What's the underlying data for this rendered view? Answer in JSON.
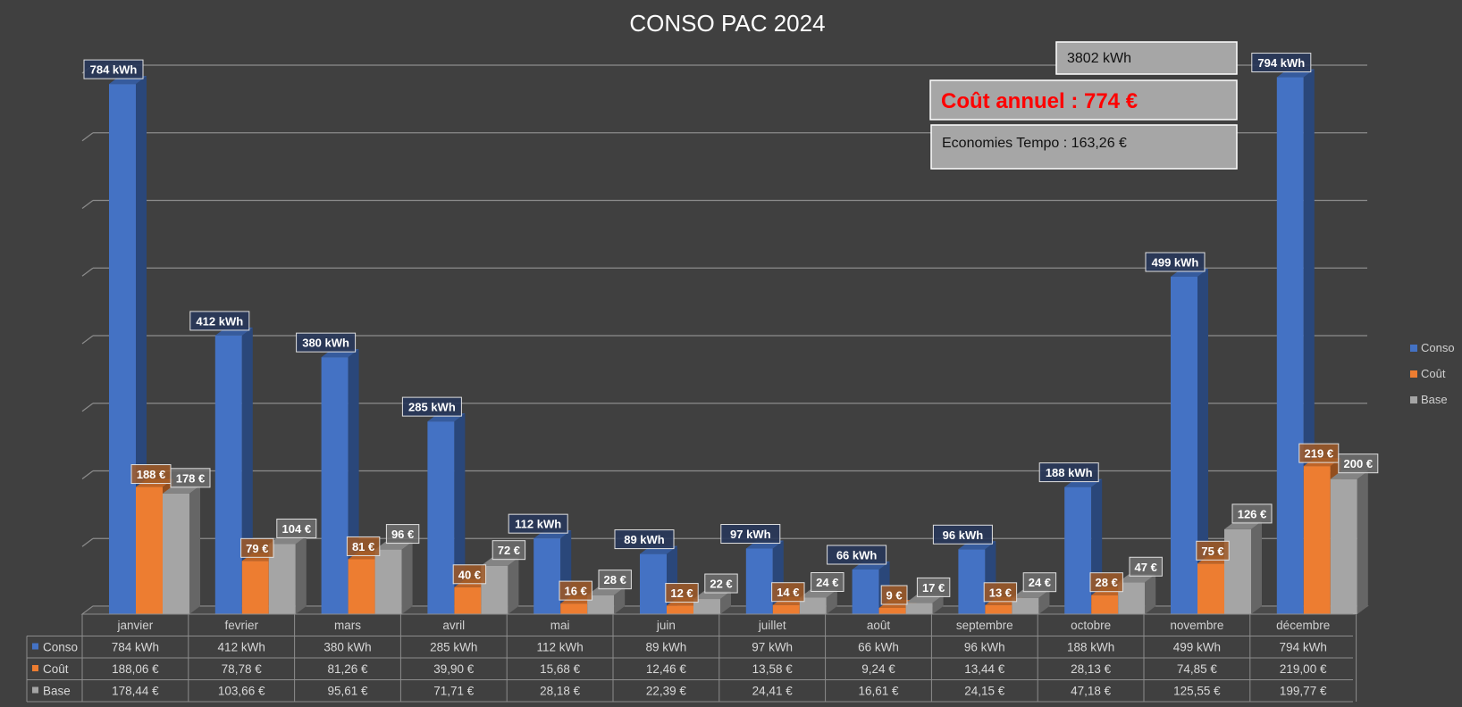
{
  "chart_data": {
    "type": "bar",
    "title": "CONSO PAC 2024",
    "categories": [
      "janvier",
      "fevrier",
      "mars",
      "avril",
      "mai",
      "juin",
      "juillet",
      "août",
      "septembre",
      "octobre",
      "novembre",
      "décembre"
    ],
    "series": [
      {
        "name": "Conso",
        "color": "#4472c4",
        "values": [
          784,
          412,
          380,
          285,
          112,
          89,
          97,
          66,
          96,
          188,
          499,
          794
        ],
        "labels": [
          "784 kWh",
          "412 kWh",
          "380 kWh",
          "285 kWh",
          "112 kWh",
          "89 kWh",
          "97 kWh",
          "66 kWh",
          "96 kWh",
          "188 kWh",
          "499 kWh",
          "794 kWh"
        ],
        "table": [
          "784 kWh",
          "412 kWh",
          "380 kWh",
          "285 kWh",
          "112 kWh",
          "89 kWh",
          "97 kWh",
          "66 kWh",
          "96 kWh",
          "188 kWh",
          "499 kWh",
          "794 kWh"
        ]
      },
      {
        "name": "Coût",
        "color": "#ed7d31",
        "values": [
          188.06,
          78.78,
          81.26,
          39.9,
          15.68,
          12.46,
          13.58,
          9.24,
          13.44,
          28.13,
          74.85,
          219.0
        ],
        "labels": [
          "188 €",
          "79 €",
          "81 €",
          "40 €",
          "16 €",
          "12 €",
          "14 €",
          "9 €",
          "13 €",
          "28 €",
          "75 €",
          "219 €"
        ],
        "table": [
          "188,06 €",
          "78,78 €",
          "81,26 €",
          "39,90 €",
          "15,68 €",
          "12,46 €",
          "13,58 €",
          "9,24 €",
          "13,44 €",
          "28,13 €",
          "74,85 €",
          "219,00 €"
        ]
      },
      {
        "name": "Base",
        "color": "#a5a5a5",
        "values": [
          178.44,
          103.66,
          95.61,
          71.71,
          28.18,
          22.39,
          24.41,
          16.61,
          24.15,
          47.18,
          125.55,
          199.77
        ],
        "labels": [
          "178 €",
          "104 €",
          "96 €",
          "72 €",
          "28 €",
          "22 €",
          "24 €",
          "17 €",
          "24 €",
          "47 €",
          "126 €",
          "200 €"
        ],
        "table": [
          "178,44 €",
          "103,66 €",
          "95,61 €",
          "71,71 €",
          "28,18 €",
          "22,39 €",
          "24,41 €",
          "16,61 €",
          "24,15 €",
          "47,18 €",
          "125,55 €",
          "199,77 €"
        ]
      }
    ],
    "ylim": [
      0,
      800
    ],
    "grid": true,
    "legend": "right",
    "data_table": true
  },
  "info_boxes": {
    "total": "3802 kWh",
    "annual_cost": "Coût annuel : 774 €",
    "savings": "Economies Tempo : 163,26 €"
  }
}
